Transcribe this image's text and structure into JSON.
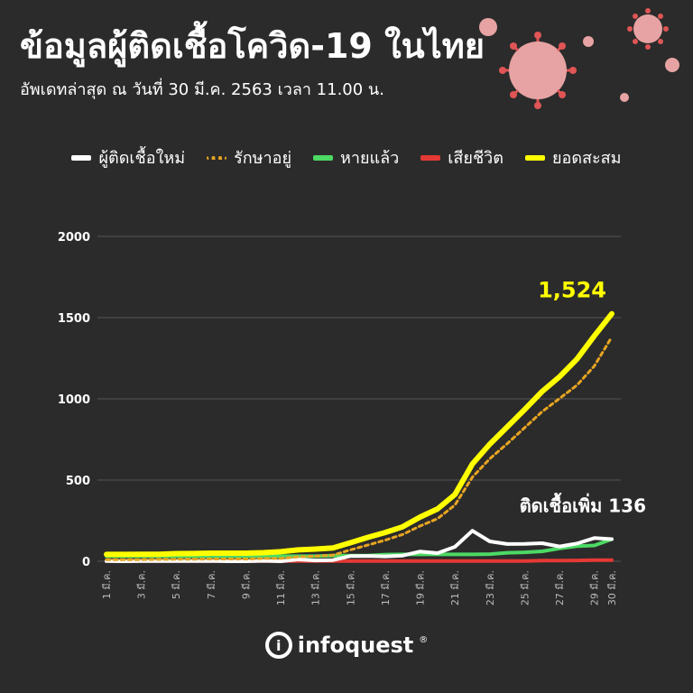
{
  "colors": {
    "background": "#2b2b2b",
    "new_cases": "#ffffff",
    "under_treatment": "#e8a521",
    "recovered": "#4cd964",
    "deaths": "#e53935",
    "cumulative": "#ffff00",
    "virus": "#e7a3a3"
  },
  "logo": {
    "text": "infoquest",
    "reg": "®"
  },
  "chart_data": {
    "type": "line",
    "title": "ข้อมูลผู้ติดเชื้อโควิด-19 ในไทย",
    "subtitle": "อัพเดทล่าสุด ณ วันที่ 30 มี.ค. 2563 เวลา 11.00 น.",
    "legend_position": "top",
    "grid": true,
    "ylim": [
      0,
      2000
    ],
    "yticks": [
      "0",
      "500",
      "1000",
      "1500",
      "2000"
    ],
    "x": [
      "1 มี.ค.",
      "2 มี.ค.",
      "3 มี.ค.",
      "4 มี.ค.",
      "5 มี.ค.",
      "6 มี.ค.",
      "7 มี.ค.",
      "8 มี.ค.",
      "9 มี.ค.",
      "10 มี.ค.",
      "11 มี.ค.",
      "12 มี.ค.",
      "13 มี.ค.",
      "14 มี.ค.",
      "15 มี.ค.",
      "16 มี.ค.",
      "17 มี.ค.",
      "18 มี.ค.",
      "19 มี.ค.",
      "20 มี.ค.",
      "21 มี.ค.",
      "22 มี.ค.",
      "23 มี.ค.",
      "24 มี.ค.",
      "25 มี.ค.",
      "26 มี.ค.",
      "27 มี.ค.",
      "28 มี.ค.",
      "29 มี.ค.",
      "30 มี.ค."
    ],
    "xtick_labels": [
      "1 มี.ค.",
      "3 มี.ค.",
      "5 มี.ค.",
      "7 มี.ค.",
      "9 มี.ค.",
      "11 มี.ค.",
      "13 มี.ค.",
      "15 มี.ค.",
      "17 มี.ค.",
      "19 มี.ค.",
      "21 มี.ค.",
      "23 มี.ค.",
      "25 มี.ค.",
      "27 มี.ค.",
      "29 มี.ค.",
      "30 มี.ค."
    ],
    "series": [
      {
        "name": "ผู้ติดเชื้อใหม่",
        "style": "solid",
        "values": [
          1,
          0,
          1,
          1,
          1,
          1,
          2,
          0,
          0,
          3,
          0,
          11,
          5,
          7,
          32,
          33,
          30,
          35,
          60,
          50,
          89,
          188,
          122,
          106,
          107,
          111,
          91,
          109,
          143,
          136
        ]
      },
      {
        "name": "รักษาอยู่",
        "style": "dotted",
        "values": [
          10,
          10,
          10,
          11,
          12,
          13,
          14,
          14,
          14,
          17,
          17,
          27,
          31,
          38,
          70,
          100,
          130,
          165,
          217,
          262,
          346,
          518,
          631,
          724,
          822,
          921,
          1002,
          1084,
          1202,
          1381
        ]
      },
      {
        "name": "หายแล้ว",
        "style": "solid",
        "values": [
          31,
          31,
          31,
          31,
          31,
          31,
          31,
          31,
          31,
          31,
          31,
          31,
          31,
          35,
          35,
          35,
          41,
          42,
          42,
          42,
          42,
          42,
          44,
          52,
          55,
          61,
          79,
          93,
          97,
          136
        ]
      },
      {
        "name": "เสียชีวิต",
        "style": "solid",
        "values": [
          1,
          1,
          1,
          1,
          1,
          1,
          1,
          1,
          1,
          1,
          1,
          1,
          1,
          1,
          1,
          1,
          1,
          1,
          1,
          1,
          1,
          1,
          1,
          1,
          1,
          4,
          4,
          5,
          7,
          7
        ]
      },
      {
        "name": "ยอดสะสม",
        "style": "solid",
        "values": [
          42,
          42,
          43,
          43,
          47,
          48,
          50,
          50,
          50,
          53,
          59,
          70,
          75,
          82,
          114,
          147,
          177,
          212,
          272,
          322,
          411,
          599,
          721,
          827,
          934,
          1045,
          1136,
          1245,
          1388,
          1524
        ]
      }
    ],
    "annotations": [
      {
        "text": "1,524",
        "series": "ยอดสะสม"
      },
      {
        "text": "ติดเชื้อเพิ่ม 136",
        "series": "ผู้ติดเชื้อใหม่"
      }
    ]
  }
}
